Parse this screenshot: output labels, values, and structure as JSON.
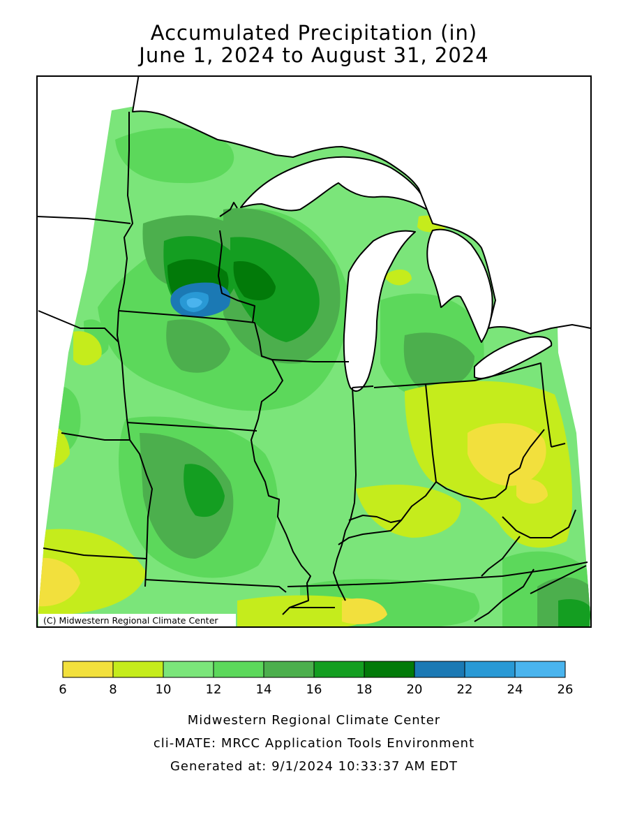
{
  "title": {
    "line1": "Accumulated Precipitation (in)",
    "line2": "June 1, 2024 to August 31, 2024"
  },
  "map": {
    "copyright": "(C) Midwestern Regional Climate Center",
    "background_color": "#7be57a",
    "lake_color": "#ffffff"
  },
  "legend": {
    "bins": [
      {
        "min": 6,
        "max": 8,
        "color": "#f2e03d"
      },
      {
        "min": 8,
        "max": 10,
        "color": "#c5ec1c"
      },
      {
        "min": 10,
        "max": 12,
        "color": "#7be57a"
      },
      {
        "min": 12,
        "max": 14,
        "color": "#5cd85b"
      },
      {
        "min": 14,
        "max": 16,
        "color": "#4caf4d"
      },
      {
        "min": 16,
        "max": 18,
        "color": "#149e21"
      },
      {
        "min": 18,
        "max": 20,
        "color": "#027a09"
      },
      {
        "min": 20,
        "max": 22,
        "color": "#1b79b4"
      },
      {
        "min": 22,
        "max": 24,
        "color": "#2999d5"
      },
      {
        "min": 24,
        "max": 26,
        "color": "#4ab4ee"
      }
    ],
    "ticks": [
      "6",
      "8",
      "10",
      "12",
      "14",
      "16",
      "18",
      "20",
      "22",
      "24",
      "26"
    ]
  },
  "footer": {
    "line1": "Midwestern Regional Climate Center",
    "line2": "cli-MATE: MRCC Application Tools Environment",
    "line3": "Generated at: 9/1/2024 10:33:37 AM EDT"
  }
}
